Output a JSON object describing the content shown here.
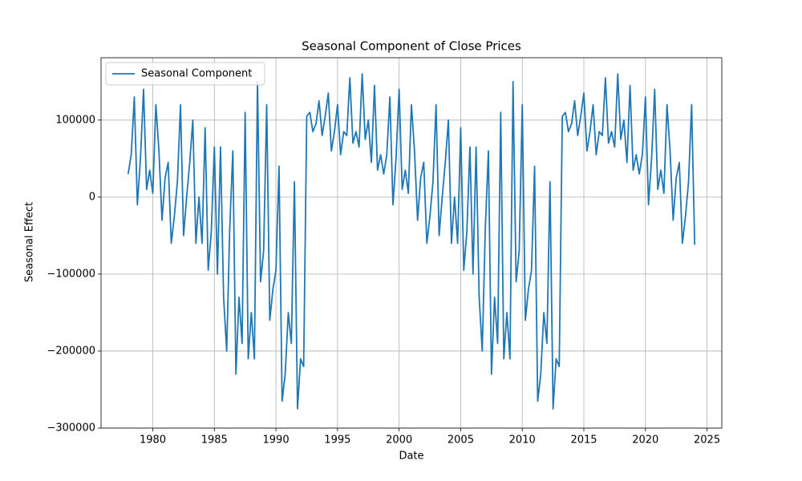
{
  "chart_data": {
    "type": "line",
    "title": "Seasonal Component of Close Prices",
    "xlabel": "Date",
    "ylabel": "Seasonal Effect",
    "x": [
      1978,
      1978.25,
      1978.5,
      1978.75,
      1979,
      1979.25,
      1979.5,
      1979.75,
      1980,
      1980.25,
      1980.5,
      1980.75,
      1981,
      1981.25,
      1981.5,
      1981.75,
      1982,
      1982.25,
      1982.5,
      1982.75,
      1983,
      1983.25,
      1983.5,
      1983.75,
      1984,
      1984.25,
      1984.5,
      1984.75,
      1985,
      1985.25,
      1985.5,
      1985.75,
      1986,
      1986.25,
      1986.5,
      1986.75,
      1987,
      1987.25,
      1987.5,
      1987.75,
      1988,
      1988.25,
      1988.5,
      1988.75,
      1989,
      1989.25,
      1989.5,
      1989.75,
      1990,
      1990.25,
      1990.5,
      1990.75,
      1991,
      1991.25,
      1991.5,
      1991.75,
      1992,
      1992.25,
      1992.5,
      1992.75,
      1993,
      1993.25,
      1993.5,
      1993.75,
      1994,
      1994.25,
      1994.5,
      1994.75,
      1995,
      1995.25,
      1995.5,
      1995.75,
      1996,
      1996.25,
      1996.5,
      1996.75,
      1997,
      1997.25,
      1997.5,
      1997.75,
      1998,
      1998.25,
      1998.5,
      1998.75,
      1999,
      1999.25,
      1999.5,
      1999.75,
      2000,
      2000.25,
      2000.5,
      2000.75,
      2001,
      2001.25,
      2001.5,
      2001.75,
      2002,
      2002.25,
      2002.5,
      2002.75,
      2003,
      2003.25,
      2003.5,
      2003.75,
      2004,
      2004.25,
      2004.5,
      2004.75,
      2005,
      2005.25,
      2005.5,
      2005.75,
      2006,
      2006.25,
      2006.5,
      2006.75,
      2007,
      2007.25,
      2007.5,
      2007.75,
      2008,
      2008.25,
      2008.5,
      2008.75,
      2009,
      2009.25,
      2009.5,
      2009.75,
      2010,
      2010.25,
      2010.5,
      2010.75,
      2011,
      2011.25,
      2011.5,
      2011.75,
      2012,
      2012.25,
      2012.5,
      2012.75,
      2013,
      2013.25,
      2013.5,
      2013.75,
      2014,
      2014.25,
      2014.5,
      2014.75,
      2015,
      2015.25,
      2015.5,
      2015.75,
      2016,
      2016.25,
      2016.5,
      2016.75,
      2017,
      2017.25,
      2017.5,
      2017.75,
      2018,
      2018.25,
      2018.5,
      2018.75,
      2019,
      2019.25,
      2019.5,
      2019.75,
      2020,
      2020.25,
      2020.5,
      2020.75,
      2021,
      2021.25,
      2021.5,
      2021.75,
      2022,
      2022.25,
      2022.5,
      2022.75,
      2023,
      2023.25,
      2023.5,
      2023.75,
      2024
    ],
    "series": [
      {
        "name": "Seasonal Component",
        "color": "#1f77b4",
        "values": [
          30000,
          55000,
          130000,
          -10000,
          50000,
          140000,
          10000,
          35000,
          5000,
          120000,
          60000,
          -30000,
          25000,
          45000,
          -60000,
          -25000,
          20000,
          120000,
          -50000,
          0,
          45000,
          100000,
          -60000,
          0,
          -60000,
          90000,
          -95000,
          -45000,
          65000,
          -100000,
          65000,
          -130000,
          -200000,
          -40000,
          60000,
          -230000,
          -130000,
          -190000,
          110000,
          -210000,
          -150000,
          -210000,
          150000,
          -110000,
          -70000,
          120000,
          -160000,
          -120000,
          -95000,
          40000,
          -265000,
          -230000,
          -150000,
          -190000,
          20000,
          -275000,
          -210000,
          -220000,
          105000,
          110000,
          85000,
          95000,
          125000,
          80000,
          105000,
          135000,
          60000,
          85000,
          120000,
          55000,
          85000,
          80000,
          155000,
          70000,
          85000,
          65000,
          160000,
          75000,
          100000,
          45000,
          145000,
          35000,
          55000,
          30000,
          55000,
          130000,
          -10000,
          50000,
          140000,
          10000,
          35000,
          5000,
          120000,
          60000,
          -30000,
          25000,
          45000,
          -60000,
          -25000,
          20000,
          120000,
          -50000,
          0,
          45000,
          100000,
          -60000,
          0,
          -60000,
          90000,
          -95000,
          -45000,
          65000,
          -100000,
          65000,
          -130000,
          -200000,
          -40000,
          60000,
          -230000,
          -130000,
          -190000,
          110000,
          -210000,
          -150000,
          -210000,
          150000,
          -110000,
          -70000,
          120000,
          -160000,
          -120000,
          -95000,
          40000,
          -265000,
          -230000,
          -150000,
          -190000,
          20000,
          -275000,
          -210000,
          -220000,
          105000,
          110000,
          85000,
          95000,
          125000,
          80000,
          105000,
          135000,
          60000,
          85000,
          120000,
          55000,
          85000,
          80000,
          155000,
          70000,
          85000,
          65000,
          160000,
          75000,
          100000,
          45000,
          145000,
          35000,
          55000,
          30000,
          55000,
          130000,
          -10000,
          50000,
          140000,
          10000,
          35000,
          5000,
          120000,
          60000,
          -30000,
          25000,
          45000,
          -60000,
          -25000,
          20000,
          120000,
          -62000
        ]
      }
    ],
    "xlim": [
      1975.8,
      2026.2
    ],
    "xticks": [
      1980,
      1985,
      1990,
      1995,
      2000,
      2005,
      2010,
      2015,
      2020,
      2025
    ],
    "ylim": [
      -300000,
      181000
    ],
    "yticks": [
      {
        "value": -300000,
        "label": "−300000"
      },
      {
        "value": -200000,
        "label": "−200000"
      },
      {
        "value": -100000,
        "label": "−100000"
      },
      0,
      100000
    ],
    "grid": true,
    "legend": "upper left"
  }
}
